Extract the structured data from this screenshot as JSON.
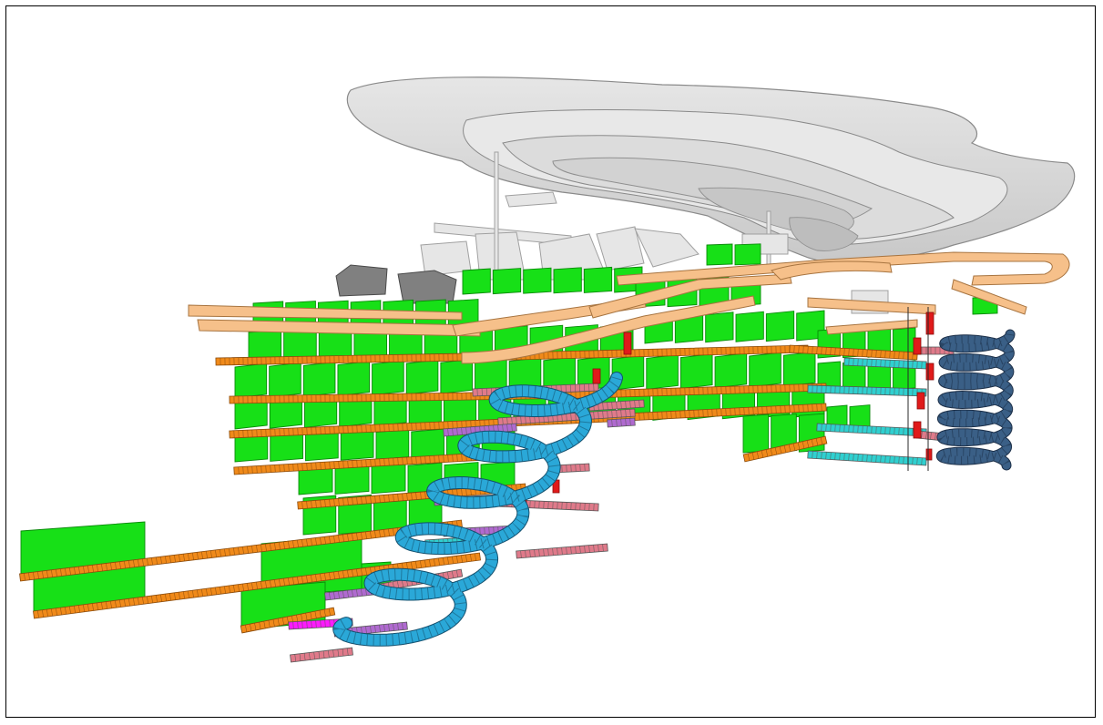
{
  "figure": {
    "subject": "3d-mine-design-model",
    "colors": {
      "surface_pit": "#d4d4d4",
      "surface_pit_edge": "#8a8a8a",
      "stope": "#17e017",
      "stope_edge": "#0a8a0a",
      "level_drive": "#f08a1a",
      "upper_drive": "#f6c08a",
      "decline_main": "#2aa8d8",
      "decline_east": "#3a5f86",
      "access_pink": "#e07a8a",
      "access_purple": "#b06ad0",
      "access_magenta": "#ff1aff",
      "access_cyan": "#2fd0d0",
      "raise": "#e01a1a",
      "existing_workings": "#7a7a7a"
    }
  }
}
